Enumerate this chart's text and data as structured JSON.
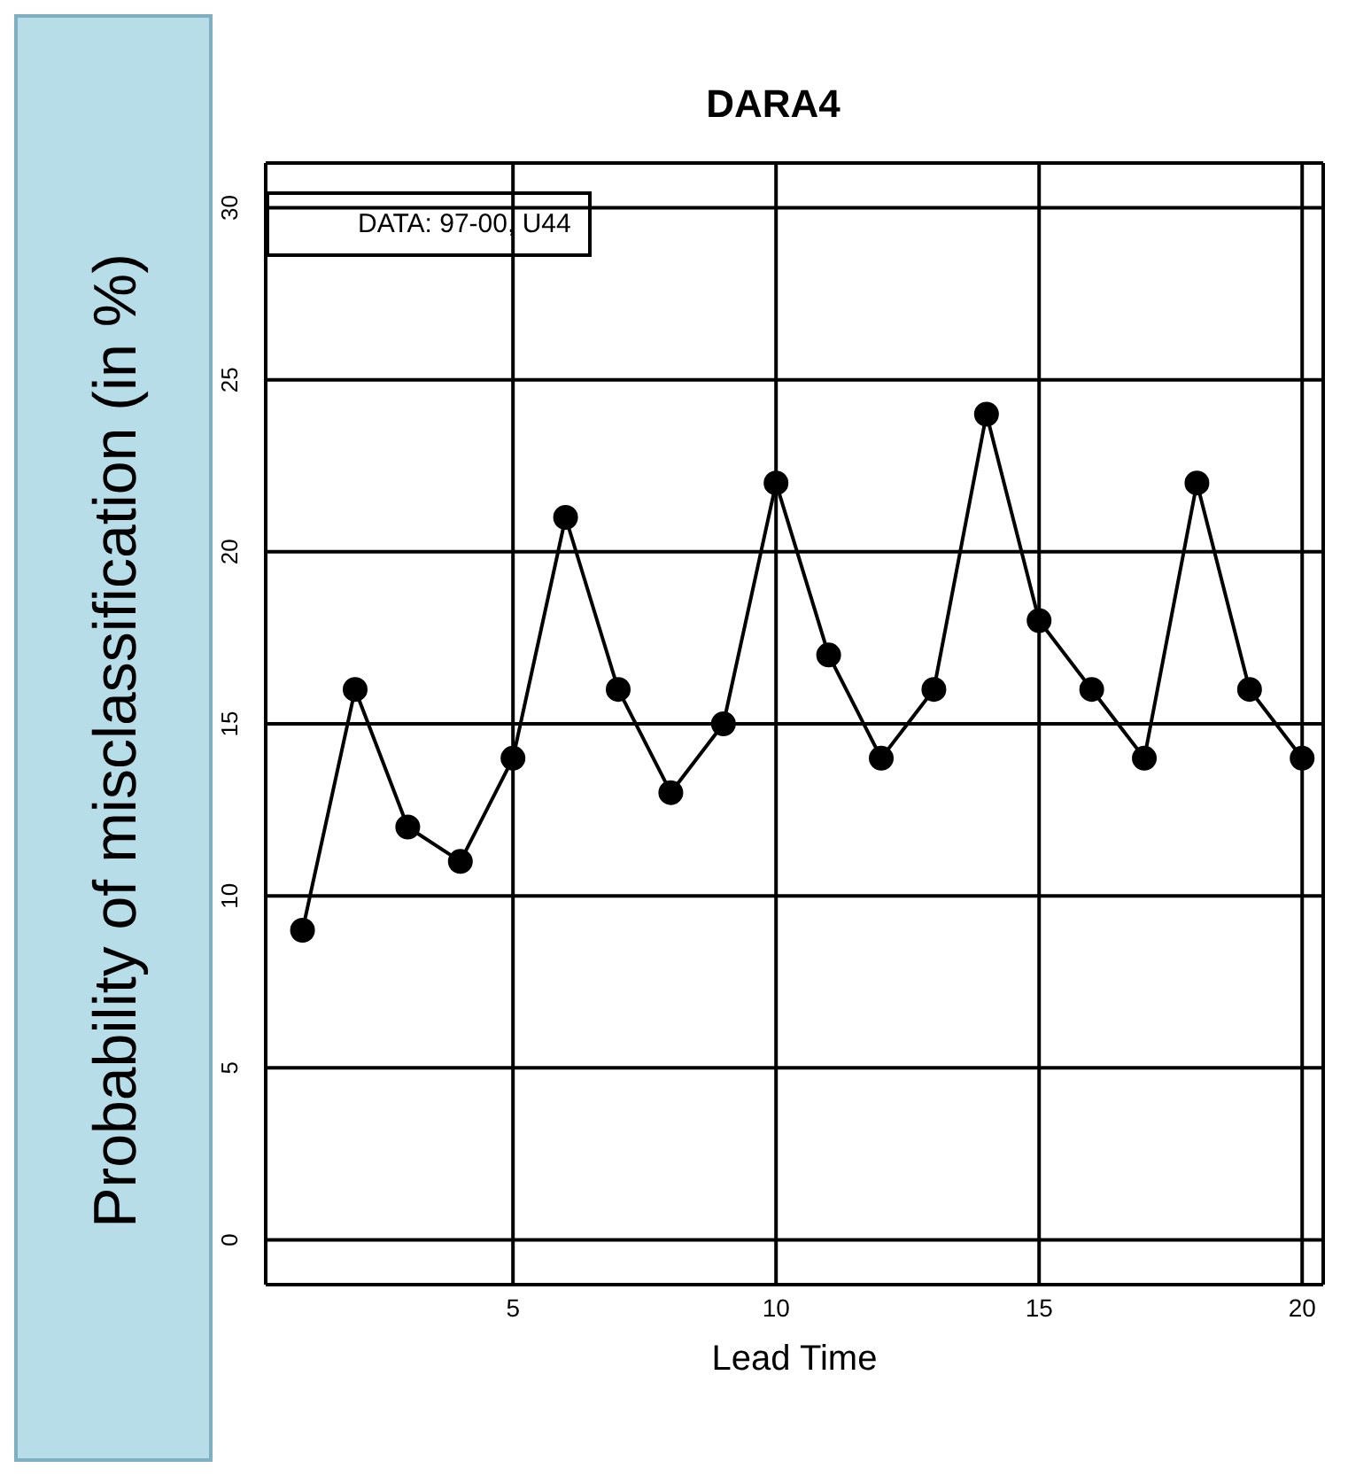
{
  "chart_data": {
    "type": "line",
    "title": "DARA4",
    "xlabel": "Lead Time",
    "ylabel": "Probability of misclassification (in %)",
    "annotations": [
      "DATA: 97-00, U44"
    ],
    "x": [
      1,
      2,
      3,
      4,
      5,
      6,
      7,
      8,
      9,
      10,
      11,
      12,
      13,
      14,
      15,
      16,
      17,
      18,
      19,
      20
    ],
    "series": [
      {
        "color": "#000000",
        "values": [
          9,
          16,
          12,
          11,
          14,
          21,
          16,
          13,
          15,
          22,
          17,
          14,
          16,
          24,
          18,
          16,
          14,
          22,
          16,
          14
        ]
      }
    ],
    "xlim": [
      0.3,
      20.4
    ],
    "xticks": [
      5,
      10,
      15,
      20
    ],
    "ylim": [
      -1.3,
      31.3
    ],
    "yticks": [
      0,
      5,
      10,
      15,
      20,
      25,
      30
    ],
    "grid": true,
    "marker": "circle",
    "line_style": "solid",
    "legend": false
  }
}
